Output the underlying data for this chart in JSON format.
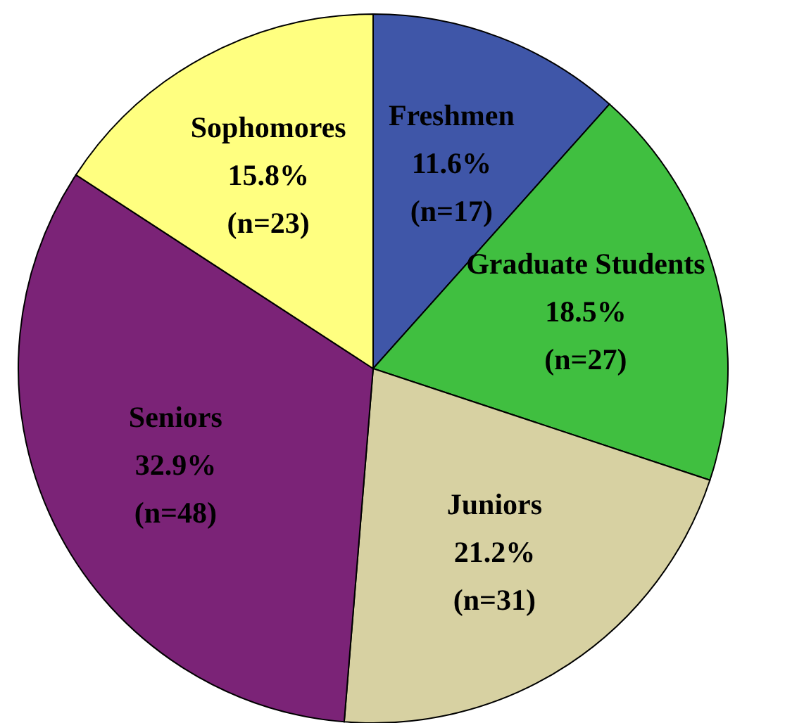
{
  "chart_data": {
    "type": "pie",
    "categories": [
      "Freshmen",
      "Graduate Students",
      "Juniors",
      "Seniors",
      "Sophomores"
    ],
    "values": [
      11.6,
      18.5,
      21.2,
      32.9,
      15.8
    ],
    "colors": [
      "#3f56a8",
      "#40bf40",
      "#d7d1a2",
      "#7b2377",
      "#ffff80"
    ],
    "value_labels": [
      "11.6%\n(n=17)",
      "18.5%\n(n=27)",
      "21.2%\n(n=31)",
      "32.9%\n(n=48)",
      "15.8%\n(n=23)"
    ],
    "legend": false
  }
}
